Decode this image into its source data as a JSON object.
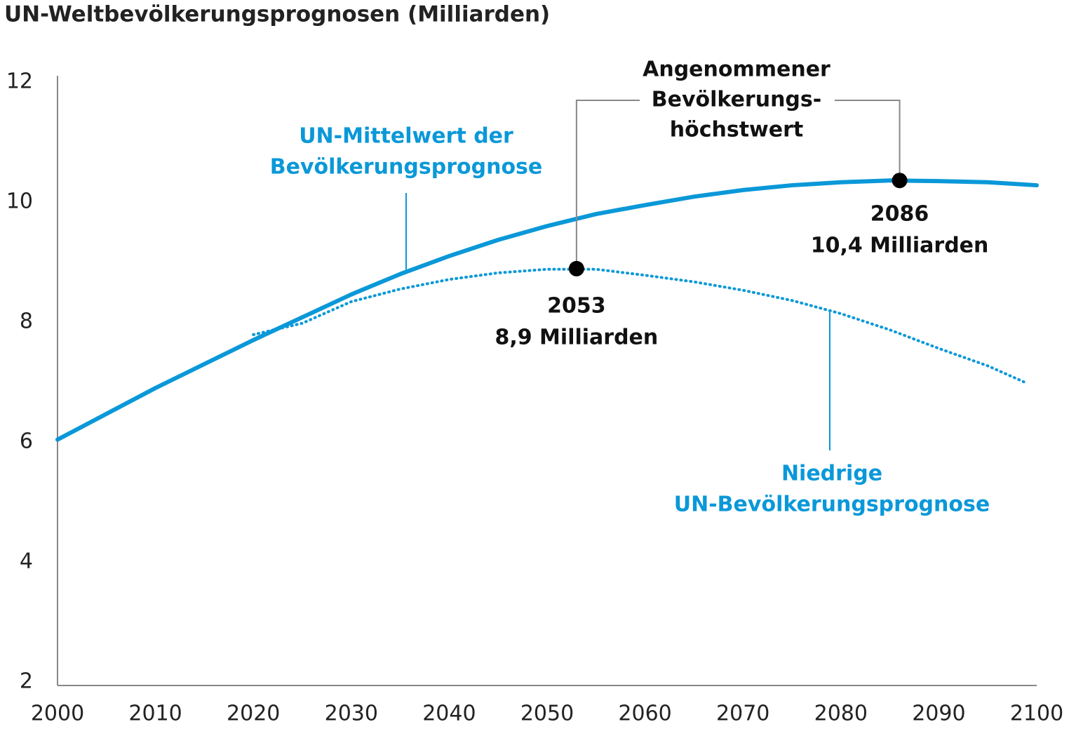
{
  "chart_data": {
    "type": "line",
    "title": "UN-Weltbevölkerungsprognosen (Milliarden)",
    "xlim": [
      2000,
      2100
    ],
    "xticks": [
      2000,
      2010,
      2020,
      2030,
      2040,
      2050,
      2060,
      2070,
      2080,
      2090,
      2100
    ],
    "ylim": [
      2,
      12
    ],
    "yticks": [
      2,
      4,
      6,
      8,
      10,
      12
    ],
    "grid": false,
    "series": [
      {
        "label": [
          "UN-Mittelwert der",
          "Bevölkerungsprognose"
        ],
        "color": "#0a98d8",
        "style": "solid",
        "x": [
          2000,
          2005,
          2010,
          2015,
          2020,
          2025,
          2030,
          2035,
          2040,
          2045,
          2050,
          2055,
          2060,
          2065,
          2070,
          2075,
          2080,
          2085,
          2090,
          2095,
          2100
        ],
        "values": [
          6.04,
          6.47,
          6.9,
          7.3,
          7.7,
          8.08,
          8.46,
          8.8,
          9.1,
          9.37,
          9.6,
          9.8,
          9.95,
          10.09,
          10.2,
          10.28,
          10.33,
          10.36,
          10.35,
          10.33,
          10.28
        ]
      },
      {
        "label": [
          "Niedrige",
          "UN-Bevölkerungsprognose"
        ],
        "color": "#0a98d8",
        "style": "dotted",
        "x": [
          2020,
          2025,
          2030,
          2035,
          2040,
          2045,
          2050,
          2055,
          2060,
          2065,
          2070,
          2075,
          2080,
          2085,
          2090,
          2095,
          2099
        ],
        "values": [
          7.79,
          7.98,
          8.34,
          8.55,
          8.71,
          8.82,
          8.88,
          8.88,
          8.78,
          8.67,
          8.53,
          8.36,
          8.14,
          7.87,
          7.56,
          7.27,
          6.98
        ]
      }
    ],
    "annotations": [
      {
        "x": 2053,
        "y": 8.89,
        "label": [
          "2053",
          "8,9 Milliarden"
        ]
      },
      {
        "x": 2086,
        "y": 10.36,
        "label": [
          "2086",
          "10,4 Milliarden"
        ]
      }
    ],
    "peak_label": [
      "Angenommener",
      "Bevölkerungs-",
      "höchstwert"
    ]
  }
}
